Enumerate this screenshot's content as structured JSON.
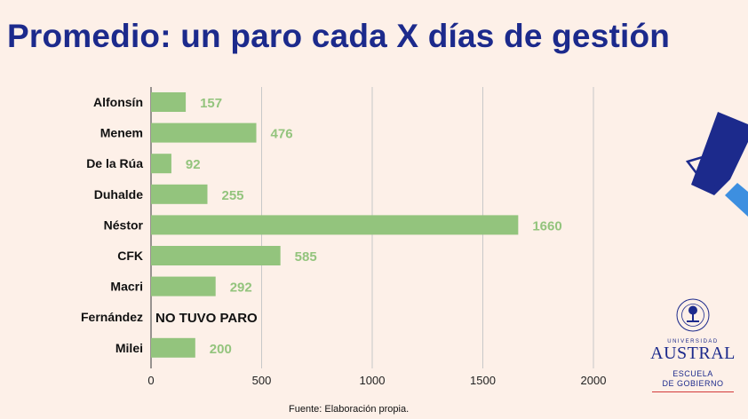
{
  "title": "Promedio: un paro cada X días de gestión",
  "source": "Fuente: Elaboración propia.",
  "chart_data": {
    "type": "bar",
    "orientation": "horizontal",
    "title": "Promedio: un paro cada X días de gestión",
    "categories": [
      "Alfonsín",
      "Menem",
      "De la Rúa",
      "Duhalde",
      "Néstor",
      "CFK",
      "Macri",
      "Fernández",
      "Milei"
    ],
    "values": [
      157,
      476,
      92,
      255,
      1660,
      585,
      292,
      null,
      200
    ],
    "value_labels": [
      "157",
      "476",
      "92",
      "255",
      "1660",
      "585",
      "292",
      "NO TUVO PARO",
      "200"
    ],
    "xlim": [
      0,
      2000
    ],
    "xticks": [
      0,
      500,
      1000,
      1500,
      2000
    ],
    "grid": true,
    "xlabel": "",
    "ylabel": ""
  },
  "colors": {
    "bar": "#93c47d",
    "value_label": "#93c47d",
    "title": "#1c2a8c",
    "grid": "#c8c8c8",
    "background": "#fdf0e8",
    "accent_blue": "#1c2a8c",
    "accent_light_blue": "#3d8fe0"
  },
  "logo": {
    "university": "UNIVERSIDAD",
    "name": "AUSTRAL",
    "school_line1": "ESCUELA",
    "school_line2": "DE GOBIERNO"
  }
}
